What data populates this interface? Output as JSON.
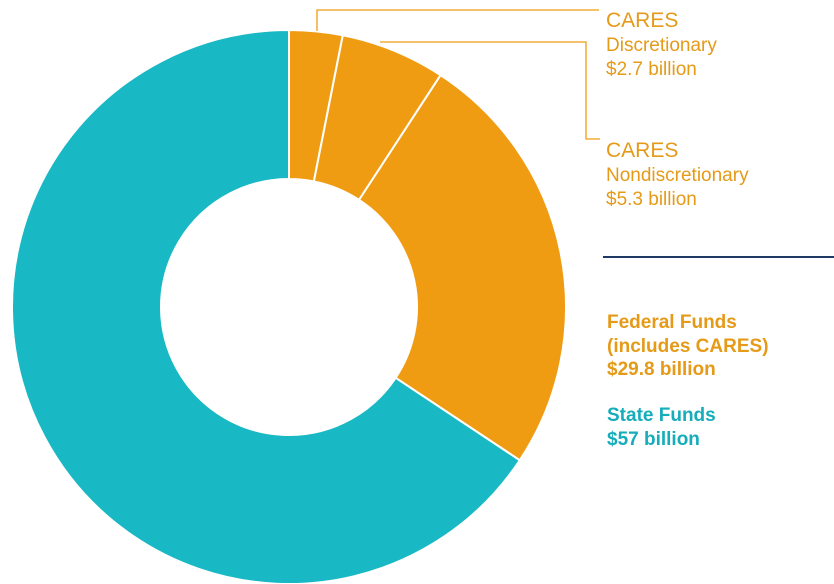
{
  "chart_data": {
    "type": "pie",
    "donut": true,
    "slices": [
      {
        "name": "CARES Discretionary",
        "value": 2.7,
        "color": "#f09c13"
      },
      {
        "name": "CARES Nondiscretionary",
        "value": 5.3,
        "color": "#f09c13"
      },
      {
        "name": "Other Federal Funds",
        "value": 21.8,
        "color": "#f09c13"
      },
      {
        "name": "State Funds",
        "value": 57,
        "color": "#18b8c4"
      }
    ],
    "labels": {
      "cares_discretionary": {
        "title": "CARES",
        "subtitle": "Discretionary",
        "amount": "$2.7 billion"
      },
      "cares_nondiscretionary": {
        "title": "CARES",
        "subtitle": "Nondiscretionary",
        "amount": "$5.3 billion"
      },
      "federal": {
        "line1": "Federal Funds",
        "line2": "(includes CARES)",
        "amount": "$29.8 billion",
        "value": 29.8,
        "color": "#e59a18"
      },
      "state": {
        "line1": "State Funds",
        "amount": "$57 billion",
        "value": 57,
        "color": "#16adbb"
      }
    },
    "colors": {
      "federal": "#f09c13",
      "state": "#18b8c4",
      "divider": "#1f3864"
    }
  }
}
